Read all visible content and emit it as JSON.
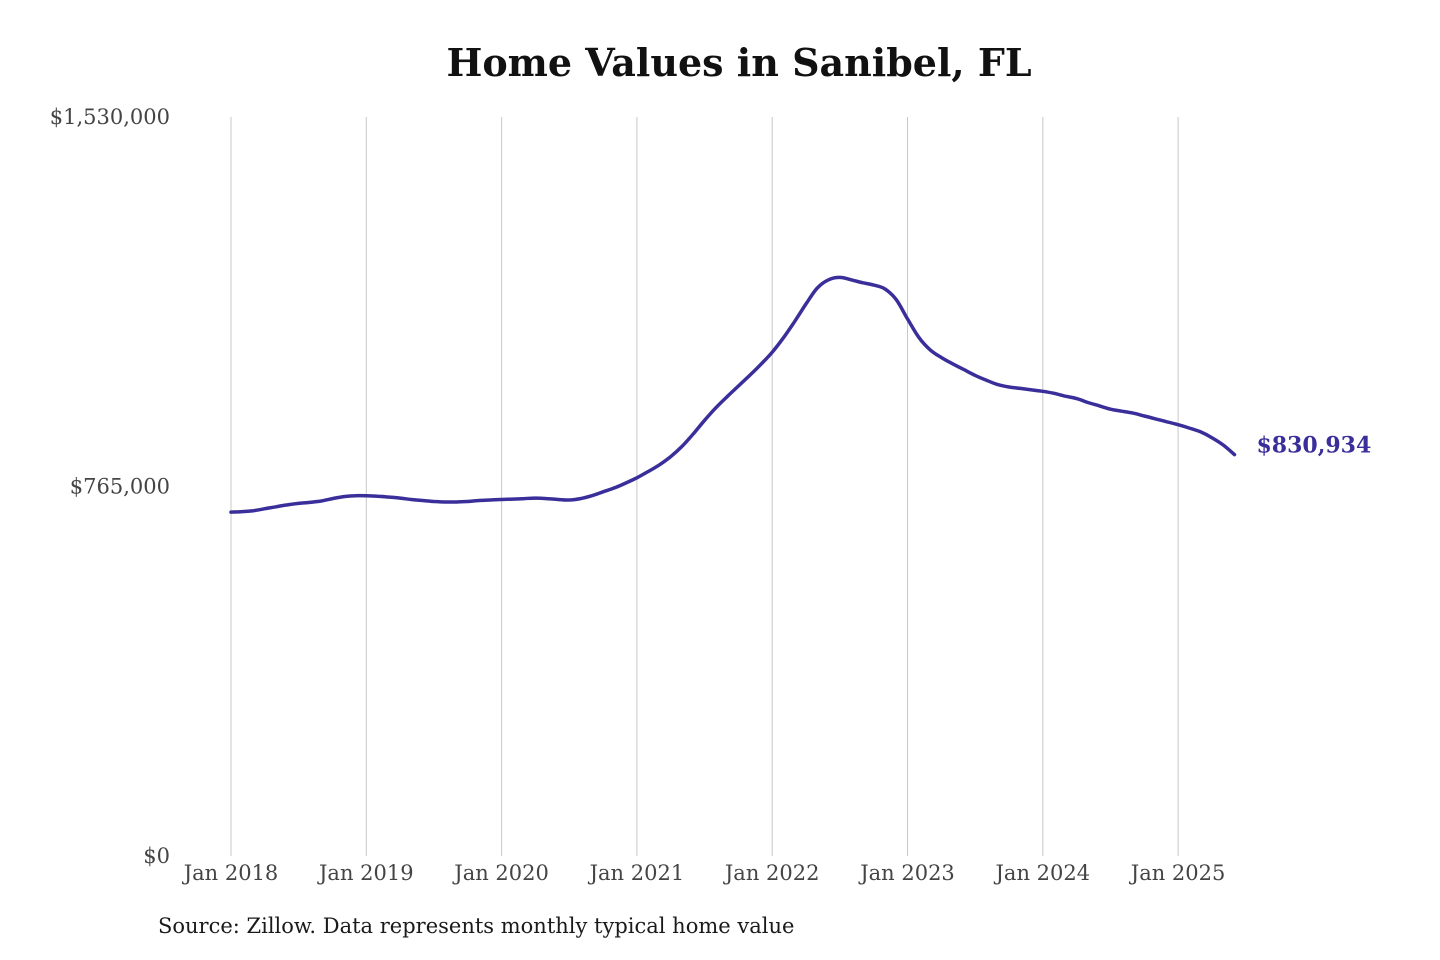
{
  "chart_data": {
    "type": "line",
    "title": "Home Values in Sanibel, FL",
    "source": "Source: Zillow. Data represents monthly typical home value",
    "xlabel": "",
    "ylabel": "",
    "ylim": [
      0,
      1530000
    ],
    "grid": "vertical",
    "line_color": "#3a2f9a",
    "y_ticks": [
      {
        "value": 0,
        "label": "$0"
      },
      {
        "value": 765000,
        "label": "$765,000"
      },
      {
        "value": 1530000,
        "label": "$1,530,000"
      }
    ],
    "x_ticks": [
      {
        "value": "2018-01",
        "label": "Jan 2018"
      },
      {
        "value": "2019-01",
        "label": "Jan 2019"
      },
      {
        "value": "2020-01",
        "label": "Jan 2020"
      },
      {
        "value": "2021-01",
        "label": "Jan 2021"
      },
      {
        "value": "2022-01",
        "label": "Jan 2022"
      },
      {
        "value": "2023-01",
        "label": "Jan 2023"
      },
      {
        "value": "2024-01",
        "label": "Jan 2024"
      },
      {
        "value": "2025-01",
        "label": "Jan 2025"
      }
    ],
    "end_label": "$830,934",
    "series": [
      {
        "points": [
          [
            "2018-01",
            712000
          ],
          [
            "2018-02",
            713000
          ],
          [
            "2018-03",
            715000
          ],
          [
            "2018-04",
            719000
          ],
          [
            "2018-05",
            723000
          ],
          [
            "2018-06",
            727000
          ],
          [
            "2018-07",
            730000
          ],
          [
            "2018-08",
            732000
          ],
          [
            "2018-09",
            735000
          ],
          [
            "2018-10",
            740000
          ],
          [
            "2018-11",
            744000
          ],
          [
            "2018-12",
            746000
          ],
          [
            "2019-01",
            746000
          ],
          [
            "2019-02",
            745000
          ],
          [
            "2019-03",
            743000
          ],
          [
            "2019-04",
            741000
          ],
          [
            "2019-05",
            738000
          ],
          [
            "2019-06",
            736000
          ],
          [
            "2019-07",
            734000
          ],
          [
            "2019-08",
            733000
          ],
          [
            "2019-09",
            733000
          ],
          [
            "2019-10",
            734000
          ],
          [
            "2019-11",
            736000
          ],
          [
            "2019-12",
            737000
          ],
          [
            "2020-01",
            738000
          ],
          [
            "2020-02",
            739000
          ],
          [
            "2020-03",
            740000
          ],
          [
            "2020-04",
            741000
          ],
          [
            "2020-05",
            740000
          ],
          [
            "2020-06",
            738000
          ],
          [
            "2020-07",
            737000
          ],
          [
            "2020-08",
            740000
          ],
          [
            "2020-09",
            746000
          ],
          [
            "2020-10",
            754000
          ],
          [
            "2020-11",
            762000
          ],
          [
            "2020-12",
            772000
          ],
          [
            "2021-01",
            783000
          ],
          [
            "2021-02",
            796000
          ],
          [
            "2021-03",
            810000
          ],
          [
            "2021-04",
            827000
          ],
          [
            "2021-05",
            848000
          ],
          [
            "2021-06",
            874000
          ],
          [
            "2021-07",
            902000
          ],
          [
            "2021-08",
            928000
          ],
          [
            "2021-09",
            951000
          ],
          [
            "2021-10",
            973000
          ],
          [
            "2021-11",
            995000
          ],
          [
            "2021-12",
            1018000
          ],
          [
            "2022-01",
            1043000
          ],
          [
            "2022-02",
            1073000
          ],
          [
            "2022-03",
            1107000
          ],
          [
            "2022-04",
            1143000
          ],
          [
            "2022-05",
            1176000
          ],
          [
            "2022-06",
            1193000
          ],
          [
            "2022-07",
            1198000
          ],
          [
            "2022-08",
            1193000
          ],
          [
            "2022-09",
            1187000
          ],
          [
            "2022-10",
            1182000
          ],
          [
            "2022-11",
            1174000
          ],
          [
            "2022-12",
            1152000
          ],
          [
            "2023-01",
            1112000
          ],
          [
            "2023-02",
            1074000
          ],
          [
            "2023-03",
            1048000
          ],
          [
            "2023-04",
            1032000
          ],
          [
            "2023-05",
            1019000
          ],
          [
            "2023-06",
            1007000
          ],
          [
            "2023-07",
            995000
          ],
          [
            "2023-08",
            985000
          ],
          [
            "2023-09",
            976000
          ],
          [
            "2023-10",
            971000
          ],
          [
            "2023-11",
            968000
          ],
          [
            "2023-12",
            965000
          ],
          [
            "2024-01",
            962000
          ],
          [
            "2024-02",
            958000
          ],
          [
            "2024-03",
            952000
          ],
          [
            "2024-04",
            947000
          ],
          [
            "2024-05",
            939000
          ],
          [
            "2024-06",
            932000
          ],
          [
            "2024-07",
            925000
          ],
          [
            "2024-08",
            921000
          ],
          [
            "2024-09",
            917000
          ],
          [
            "2024-10",
            911000
          ],
          [
            "2024-11",
            905000
          ],
          [
            "2024-12",
            899000
          ],
          [
            "2025-01",
            893000
          ],
          [
            "2025-02",
            886000
          ],
          [
            "2025-03",
            878000
          ],
          [
            "2025-04",
            866000
          ],
          [
            "2025-05",
            851000
          ],
          [
            "2025-06",
            831000
          ]
        ]
      }
    ]
  }
}
